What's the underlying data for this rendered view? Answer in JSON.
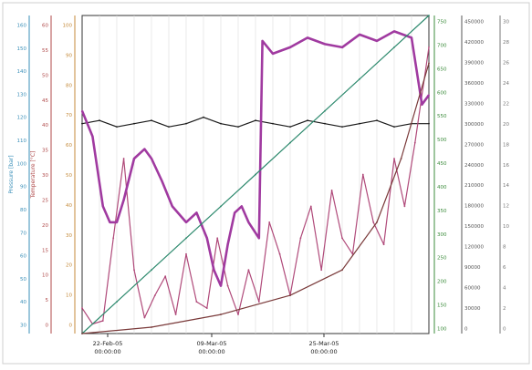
{
  "chart_data": {
    "type": "line",
    "title": "",
    "x_tick_labels": [
      {
        "date": "22-Feb-05",
        "time": "00:00:00"
      },
      {
        "date": "09-Mar-05",
        "time": "00:00:00"
      },
      {
        "date": "25-Mar-05",
        "time": "00:00:00"
      }
    ],
    "left_axes": [
      {
        "name": "pressure",
        "label": "Pressure [bar]",
        "color": "#3a8fb8",
        "ticks": [
          "160",
          "150",
          "140",
          "130",
          "120",
          "110",
          "100",
          "90",
          "80",
          "70",
          "60",
          "50",
          "40",
          "30"
        ]
      },
      {
        "name": "temperature",
        "label": "Temperature [°C]",
        "color": "#b04a4a",
        "ticks": [
          "60",
          "55",
          "50",
          "45",
          "40",
          "35",
          "30",
          "25",
          "20",
          "15",
          "10",
          "5",
          "0"
        ]
      },
      {
        "name": "salinity",
        "label": "",
        "color": "#c48a3a",
        "ticks": [
          "100",
          "90",
          "80",
          "70",
          "60",
          "50",
          "40",
          "30",
          "20",
          "10",
          "0"
        ]
      }
    ],
    "right_axes": [
      {
        "name": "depth",
        "label": "",
        "color": "#3c8c3c",
        "ticks": [
          "750",
          "700",
          "650",
          "600",
          "550",
          "500",
          "450",
          "400",
          "350",
          "300",
          "250",
          "200",
          "150",
          "100"
        ]
      },
      {
        "name": "counter",
        "label": "",
        "color": "#555555",
        "ticks": [
          "450000",
          "420000",
          "390000",
          "360000",
          "330000",
          "300000",
          "270000",
          "240000",
          "210000",
          "180000",
          "150000",
          "120000",
          "90000",
          "60000",
          "30000",
          "0"
        ]
      },
      {
        "name": "index",
        "label": "",
        "color": "#777777",
        "ticks": [
          "30",
          "28",
          "26",
          "24",
          "22",
          "20",
          "18",
          "16",
          "14",
          "12",
          "10",
          "8",
          "6",
          "4",
          "2",
          "0"
        ]
      }
    ],
    "ylim": [
      0,
      100
    ],
    "xlim": [
      0,
      100
    ],
    "series": [
      {
        "name": "",
        "color": "#1a1a1a",
        "x": [
          0,
          5,
          10,
          15,
          20,
          25,
          30,
          35,
          40,
          45,
          50,
          55,
          60,
          65,
          70,
          75,
          80,
          85,
          90,
          95,
          100
        ],
        "y": [
          66,
          67,
          65,
          66,
          67,
          65,
          66,
          68,
          66,
          65,
          67,
          66,
          65,
          67,
          66,
          65,
          66,
          67,
          65,
          66,
          66
        ]
      },
      {
        "name": "",
        "color": "#b04a7a",
        "x": [
          0,
          3,
          6,
          9,
          12,
          15,
          18,
          21,
          24,
          27,
          30,
          33,
          36,
          39,
          42,
          45,
          48,
          51,
          54,
          57,
          60,
          63,
          66,
          69,
          72,
          75,
          78,
          81,
          84,
          87,
          90,
          93,
          96,
          100
        ],
        "y": [
          8,
          3,
          4,
          30,
          55,
          20,
          5,
          12,
          18,
          6,
          25,
          10,
          8,
          30,
          15,
          6,
          20,
          10,
          35,
          25,
          12,
          30,
          40,
          20,
          45,
          30,
          25,
          50,
          35,
          28,
          55,
          40,
          60,
          90
        ]
      },
      {
        "name": "",
        "color": "#a03aa0",
        "x": [
          0,
          3,
          6,
          8,
          10,
          12,
          15,
          18,
          20,
          23,
          26,
          30,
          33,
          36,
          38,
          40,
          42,
          44,
          46,
          48,
          51,
          52,
          55,
          60,
          65,
          70,
          75,
          80,
          85,
          90,
          95,
          98,
          100
        ],
        "y": [
          70,
          62,
          40,
          35,
          35,
          42,
          55,
          58,
          55,
          48,
          40,
          35,
          38,
          30,
          20,
          15,
          28,
          38,
          40,
          35,
          30,
          92,
          88,
          90,
          93,
          91,
          90,
          94,
          92,
          95,
          93,
          72,
          75
        ]
      },
      {
        "name": "",
        "color": "#2e8a6e",
        "x": [
          0,
          10,
          20,
          30,
          40,
          50,
          60,
          70,
          80,
          90,
          100
        ],
        "y": [
          0,
          10,
          20,
          30,
          40,
          50,
          60,
          70,
          80,
          90,
          100
        ]
      },
      {
        "name": "",
        "color": "#7a3a3a",
        "x": [
          0,
          20,
          40,
          60,
          75,
          85,
          92,
          100
        ],
        "y": [
          0,
          2,
          6,
          12,
          20,
          35,
          55,
          85
        ]
      }
    ]
  }
}
